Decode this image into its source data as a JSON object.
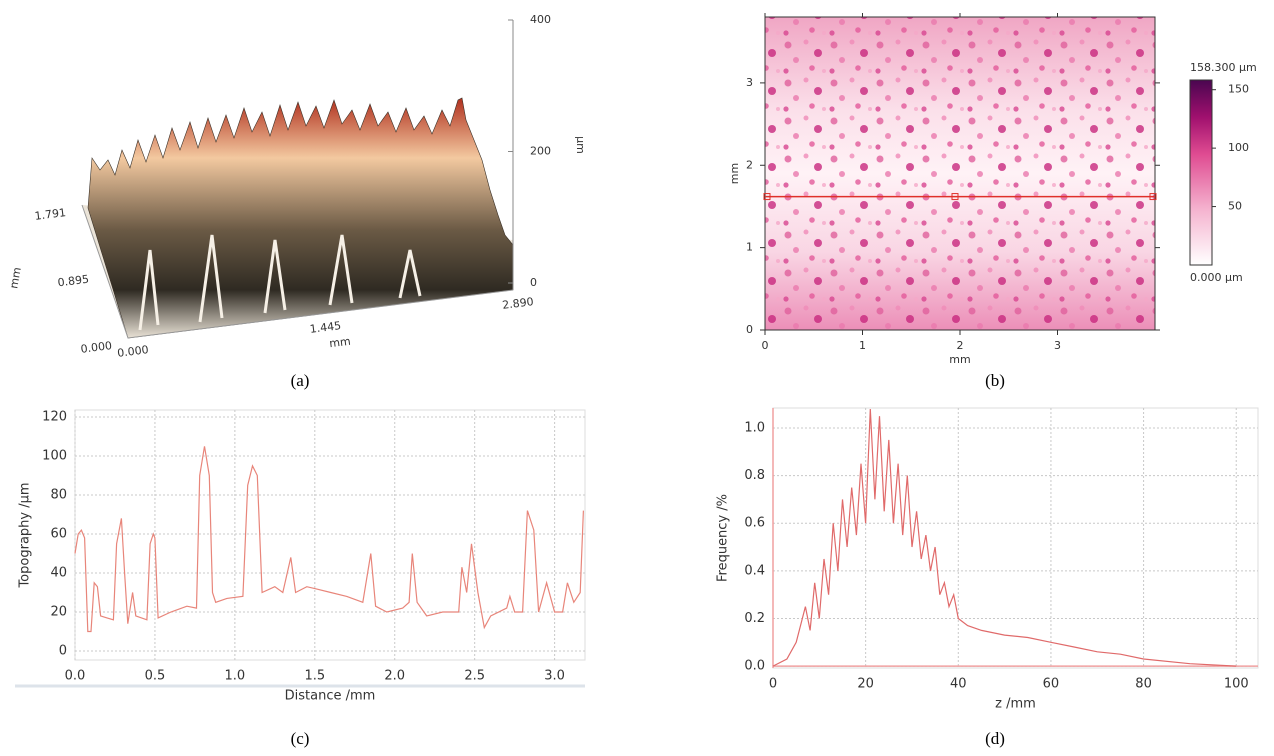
{
  "chart_data": [
    {
      "type": "surface3d",
      "panel": "(a)",
      "xlabel": "mm",
      "ylabel": "mm",
      "zlabel": "µm",
      "xlim": [
        0,
        2.89
      ],
      "ylim": [
        0,
        1.791
      ],
      "zlim": [
        0,
        400
      ],
      "xticks": [
        {
          "value": 0,
          "label": "0.000"
        },
        {
          "value": 1.445,
          "label": "1.445"
        },
        {
          "value": 2.89,
          "label": "2.890"
        }
      ],
      "yticks": [
        {
          "value": 0,
          "label": "0.000"
        },
        {
          "value": 0.895,
          "label": "0.895"
        },
        {
          "value": 1.791,
          "label": "1.791"
        }
      ],
      "zticks": [
        0,
        200,
        400
      ]
    },
    {
      "type": "heatmap",
      "panel": "(b)",
      "xlabel": "mm",
      "ylabel": "mm",
      "xlim": [
        0,
        4.0
      ],
      "ylim": [
        0,
        3.8
      ],
      "xticks": [
        0,
        1,
        2,
        3
      ],
      "yticks": [
        0,
        1,
        2,
        3
      ],
      "profile_y": 1.62,
      "profile_color": "#e0302a",
      "colorbar": {
        "clim": [
          0,
          158.3
        ],
        "ticks": [
          50,
          100,
          150
        ],
        "max_label": "158.300 µm",
        "min_label": "0.000 µm"
      }
    },
    {
      "type": "line",
      "panel": "(c)",
      "xlabel": "Distance /mm",
      "ylabel": "Topography /µm",
      "xlim": [
        0,
        3.19
      ],
      "ylim": [
        -4.6,
        123.6
      ],
      "xticks": [
        {
          "value": 0,
          "label": "0.0"
        },
        {
          "value": 0.5,
          "label": "0.5"
        },
        {
          "value": 1,
          "label": "1.0"
        },
        {
          "value": 1.5,
          "label": "1.5"
        },
        {
          "value": 2,
          "label": "2.0"
        },
        {
          "value": 2.5,
          "label": "2.5"
        },
        {
          "value": 3,
          "label": "3.0"
        }
      ],
      "yticks": [
        0,
        20,
        40,
        60,
        80,
        100,
        120
      ],
      "grid": true,
      "color": "#e8857a",
      "x": [
        0,
        0.02,
        0.04,
        0.06,
        0.08,
        0.1,
        0.12,
        0.14,
        0.16,
        0.2,
        0.24,
        0.26,
        0.29,
        0.31,
        0.33,
        0.36,
        0.38,
        0.45,
        0.47,
        0.49,
        0.5,
        0.52,
        0.6,
        0.7,
        0.76,
        0.78,
        0.81,
        0.84,
        0.86,
        0.88,
        0.95,
        1.05,
        1.08,
        1.11,
        1.14,
        1.17,
        1.25,
        1.3,
        1.35,
        1.38,
        1.45,
        1.5,
        1.6,
        1.7,
        1.8,
        1.85,
        1.88,
        1.95,
        2.05,
        2.09,
        2.11,
        2.14,
        2.2,
        2.3,
        2.4,
        2.42,
        2.45,
        2.48,
        2.52,
        2.56,
        2.6,
        2.7,
        2.72,
        2.75,
        2.8,
        2.83,
        2.87,
        2.9,
        2.95,
        3.0,
        3.05,
        3.08,
        3.12,
        3.16,
        3.18
      ],
      "values": [
        50,
        60,
        62,
        58,
        10,
        10,
        35,
        33,
        18,
        17,
        16,
        55,
        68,
        40,
        14,
        30,
        18,
        16,
        55,
        60,
        58,
        17,
        20,
        23,
        22,
        90,
        105,
        90,
        30,
        25,
        27,
        28,
        85,
        95,
        90,
        30,
        33,
        30,
        48,
        30,
        33,
        32,
        30,
        28,
        25,
        50,
        23,
        20,
        22,
        25,
        50,
        25,
        18,
        20,
        20,
        43,
        30,
        55,
        30,
        12,
        18,
        22,
        28,
        20,
        20,
        72,
        62,
        20,
        35,
        20,
        20,
        35,
        25,
        30,
        72
      ]
    },
    {
      "type": "line",
      "panel": "(d)",
      "xlabel": "z /mm",
      "ylabel": "Frequency /%",
      "xlim": [
        0,
        104.7
      ],
      "ylim": [
        -0.008,
        1.084
      ],
      "xticks": [
        0,
        20,
        40,
        60,
        80,
        100
      ],
      "yticks": [
        {
          "value": 0,
          "label": "0.0"
        },
        {
          "value": 0.2,
          "label": "0.2"
        },
        {
          "value": 0.4,
          "label": "0.4"
        },
        {
          "value": 0.6,
          "label": "0.6"
        },
        {
          "value": 0.8,
          "label": "0.8"
        },
        {
          "value": 1,
          "label": "1.0"
        }
      ],
      "grid": true,
      "color": "#e06a6a",
      "axis_color": "#f0a0a0",
      "x": [
        0,
        3,
        5,
        7,
        8,
        9,
        10,
        11,
        12,
        13,
        14,
        15,
        16,
        17,
        18,
        19,
        20,
        21,
        22,
        23,
        24,
        25,
        26,
        27,
        28,
        29,
        30,
        31,
        32,
        33,
        34,
        35,
        36,
        37,
        38,
        39,
        40,
        42,
        45,
        50,
        55,
        60,
        65,
        70,
        75,
        80,
        90,
        100
      ],
      "values": [
        0,
        0.03,
        0.1,
        0.25,
        0.15,
        0.35,
        0.2,
        0.45,
        0.3,
        0.6,
        0.4,
        0.7,
        0.5,
        0.75,
        0.55,
        0.85,
        0.6,
        1.08,
        0.7,
        1.05,
        0.65,
        0.95,
        0.6,
        0.85,
        0.55,
        0.8,
        0.5,
        0.65,
        0.45,
        0.55,
        0.4,
        0.5,
        0.3,
        0.35,
        0.25,
        0.3,
        0.2,
        0.17,
        0.15,
        0.13,
        0.12,
        0.1,
        0.08,
        0.06,
        0.05,
        0.03,
        0.01,
        0
      ]
    }
  ]
}
